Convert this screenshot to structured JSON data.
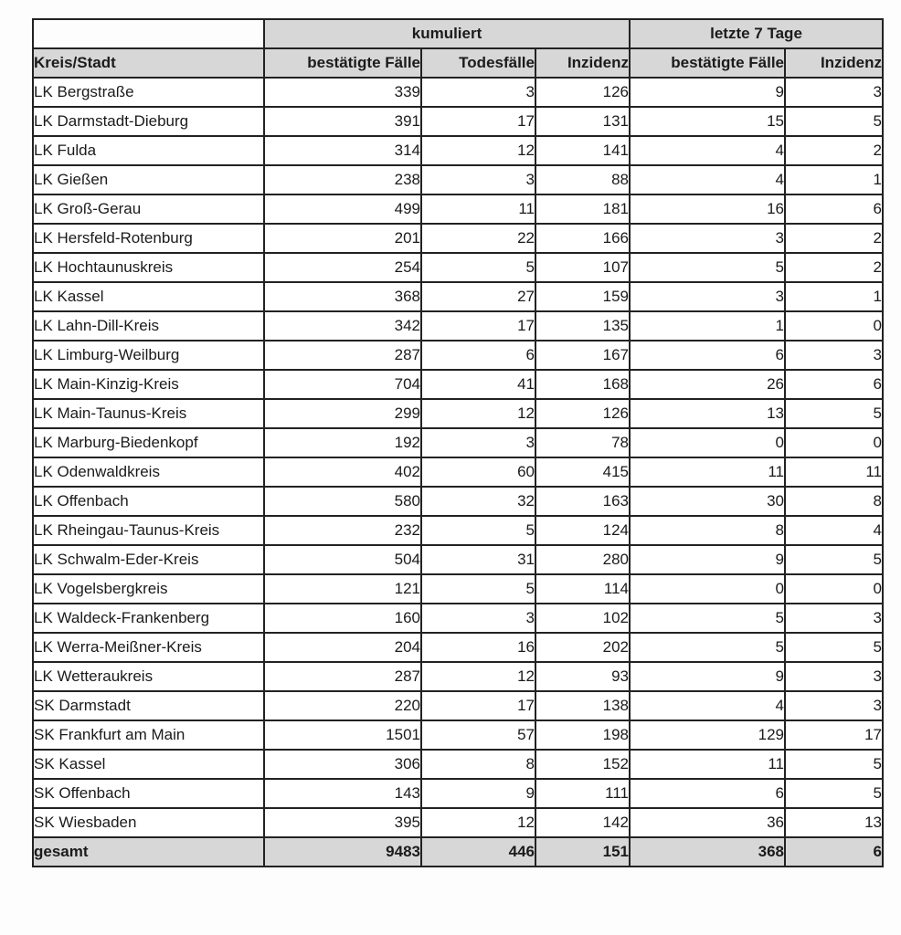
{
  "table": {
    "group_headers": [
      {
        "label": "kumuliert",
        "span": 3
      },
      {
        "label": "letzte 7 Tage",
        "span": 2
      }
    ],
    "columns": [
      "Kreis/Stadt",
      "bestätigte Fälle",
      "Todesfälle",
      "Inzidenz",
      "bestätigte Fälle",
      "Inzidenz"
    ],
    "rows": [
      [
        "LK Bergstraße",
        339,
        3,
        126,
        9,
        3
      ],
      [
        "LK Darmstadt-Dieburg",
        391,
        17,
        131,
        15,
        5
      ],
      [
        "LK Fulda",
        314,
        12,
        141,
        4,
        2
      ],
      [
        "LK Gießen",
        238,
        3,
        88,
        4,
        1
      ],
      [
        "LK Groß-Gerau",
        499,
        11,
        181,
        16,
        6
      ],
      [
        "LK Hersfeld-Rotenburg",
        201,
        22,
        166,
        3,
        2
      ],
      [
        "LK Hochtaunuskreis",
        254,
        5,
        107,
        5,
        2
      ],
      [
        "LK Kassel",
        368,
        27,
        159,
        3,
        1
      ],
      [
        "LK Lahn-Dill-Kreis",
        342,
        17,
        135,
        1,
        0
      ],
      [
        "LK Limburg-Weilburg",
        287,
        6,
        167,
        6,
        3
      ],
      [
        "LK Main-Kinzig-Kreis",
        704,
        41,
        168,
        26,
        6
      ],
      [
        "LK Main-Taunus-Kreis",
        299,
        12,
        126,
        13,
        5
      ],
      [
        "LK Marburg-Biedenkopf",
        192,
        3,
        78,
        0,
        0
      ],
      [
        "LK Odenwaldkreis",
        402,
        60,
        415,
        11,
        11
      ],
      [
        "LK Offenbach",
        580,
        32,
        163,
        30,
        8
      ],
      [
        "LK Rheingau-Taunus-Kreis",
        232,
        5,
        124,
        8,
        4
      ],
      [
        "LK Schwalm-Eder-Kreis",
        504,
        31,
        280,
        9,
        5
      ],
      [
        "LK Vogelsbergkreis",
        121,
        5,
        114,
        0,
        0
      ],
      [
        "LK Waldeck-Frankenberg",
        160,
        3,
        102,
        5,
        3
      ],
      [
        "LK Werra-Meißner-Kreis",
        204,
        16,
        202,
        5,
        5
      ],
      [
        "LK Wetteraukreis",
        287,
        12,
        93,
        9,
        3
      ],
      [
        "SK Darmstadt",
        220,
        17,
        138,
        4,
        3
      ],
      [
        "SK Frankfurt am Main",
        1501,
        57,
        198,
        129,
        17
      ],
      [
        "SK Kassel",
        306,
        8,
        152,
        11,
        5
      ],
      [
        "SK Offenbach",
        143,
        9,
        111,
        6,
        5
      ],
      [
        "SK Wiesbaden",
        395,
        12,
        142,
        36,
        13
      ]
    ],
    "footer": [
      "gesamt",
      9483,
      446,
      151,
      368,
      6
    ]
  },
  "colors": {
    "header_bg": "#d7d7d7",
    "row_bg": "#ffffff",
    "border": "#222222",
    "text": "#1b1b1b"
  }
}
